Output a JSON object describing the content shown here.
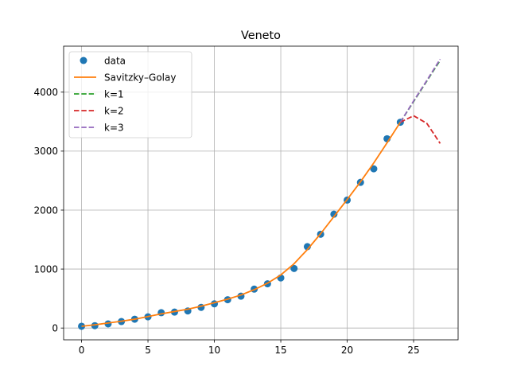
{
  "chart_data": {
    "type": "line",
    "title": "Veneto",
    "xlabel": "",
    "ylabel": "",
    "xlim": [
      -1.35,
      28.35
    ],
    "ylim": [
      -200,
      4780
    ],
    "xticks": [
      0,
      5,
      10,
      15,
      20,
      25
    ],
    "yticks": [
      0,
      1000,
      2000,
      3000,
      4000
    ],
    "grid": true,
    "legend_position": "upper-left",
    "series": [
      {
        "name": "data",
        "kind": "scatter",
        "color": "#1f77b4",
        "x": [
          0,
          1,
          2,
          3,
          4,
          5,
          6,
          7,
          8,
          9,
          10,
          11,
          12,
          13,
          14,
          15,
          16,
          17,
          18,
          19,
          20,
          21,
          22,
          23,
          24
        ],
        "y": [
          30,
          40,
          70,
          110,
          150,
          190,
          260,
          270,
          290,
          350,
          410,
          480,
          540,
          660,
          750,
          850,
          1010,
          1380,
          1590,
          1930,
          2170,
          2470,
          2700,
          3210,
          3490
        ]
      },
      {
        "name": "Savitzky–Golay",
        "kind": "line",
        "style": "solid",
        "color": "#ff7f0e",
        "x": [
          0,
          1,
          2,
          3,
          4,
          5,
          6,
          7,
          8,
          9,
          10,
          11,
          12,
          13,
          14,
          15,
          16,
          17,
          18,
          19,
          20,
          21,
          22,
          23,
          24
        ],
        "y": [
          30,
          55,
          85,
          115,
          150,
          195,
          240,
          280,
          320,
          370,
          430,
          490,
          560,
          650,
          760,
          900,
          1090,
          1330,
          1600,
          1890,
          2180,
          2480,
          2800,
          3140,
          3490
        ]
      },
      {
        "name": "k=1",
        "kind": "line",
        "style": "dashed",
        "color": "#2ca02c",
        "x": [
          24,
          25,
          26,
          27
        ],
        "y": [
          3490,
          3840,
          4190,
          4540
        ]
      },
      {
        "name": "k=2",
        "kind": "line",
        "style": "dashed",
        "color": "#d62728",
        "x": [
          24,
          25,
          26,
          27
        ],
        "y": [
          3490,
          3600,
          3470,
          3130
        ]
      },
      {
        "name": "k=3",
        "kind": "line",
        "style": "dashed",
        "color": "#9467bd",
        "x": [
          24,
          25,
          26,
          27
        ],
        "y": [
          3490,
          3850,
          4200,
          4560
        ]
      }
    ]
  }
}
